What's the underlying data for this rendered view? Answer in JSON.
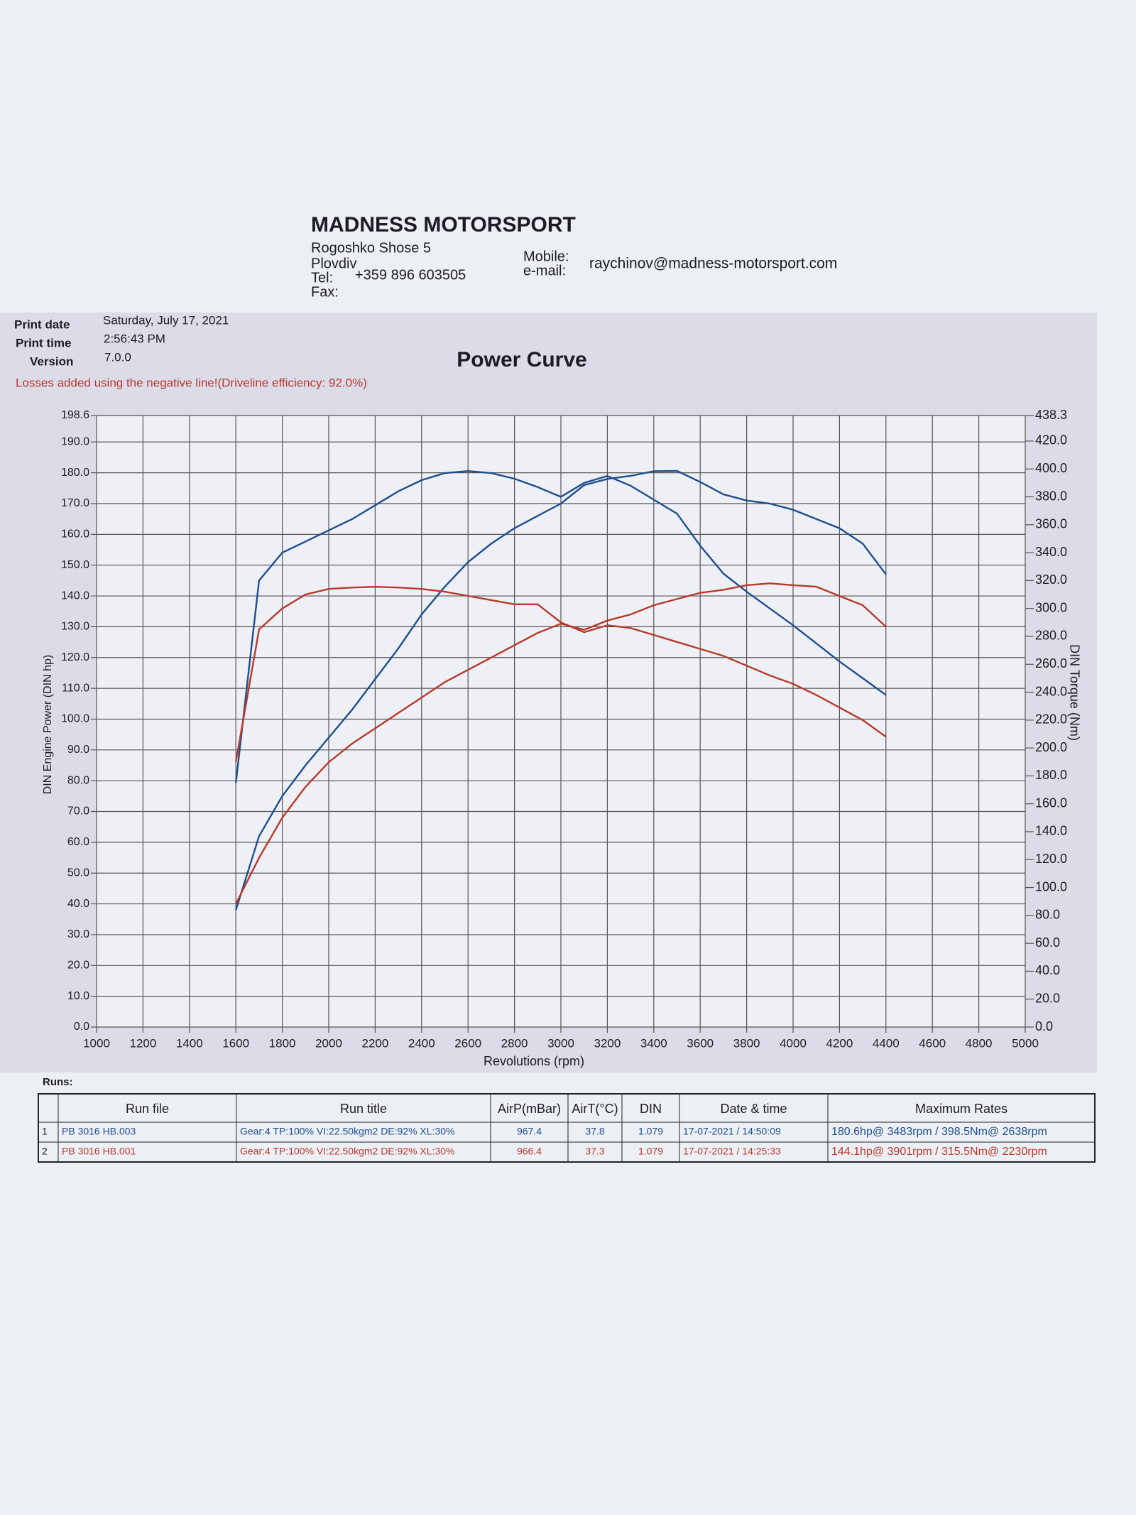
{
  "header": {
    "company": "MADNESS MOTORSPORT",
    "address": "Rogoshko Shose 5",
    "city": "Plovdiv",
    "tel_label": "Tel:",
    "tel": "+359 896 603505",
    "fax_label": "Fax:",
    "mobile_label": "Mobile:",
    "email_label": "e-mail:",
    "email": "raychinov@madness-motorsport.com"
  },
  "print_info": {
    "date_label": "Print date",
    "date": "Saturday, July 17, 2021",
    "time_label": "Print time",
    "time": "2:56:43 PM",
    "version_label": "Version",
    "version": "7.0.0"
  },
  "note": "Losses added using the negative line!(Driveline efficiency: 92.0%)",
  "chart_data": {
    "type": "line",
    "title": "Power Curve",
    "x_label": "Revolutions (rpm)",
    "y_label": "DIN Engine Power (DIN hp)",
    "y2_label": "DIN Torque (Nm)",
    "grid": true,
    "x": [
      1600,
      1700,
      1800,
      1900,
      2000,
      2100,
      2200,
      2300,
      2400,
      2500,
      2600,
      2700,
      2800,
      2900,
      3000,
      3100,
      3200,
      3300,
      3400,
      3500,
      3600,
      3700,
      3800,
      3900,
      4000,
      4100,
      4200,
      4300,
      4400
    ],
    "xlim": [
      1000,
      5000
    ],
    "xticks": [
      1000,
      1200,
      1400,
      1600,
      1800,
      2000,
      2200,
      2400,
      2600,
      2800,
      3000,
      3200,
      3400,
      3600,
      3800,
      4000,
      4200,
      4400,
      4600,
      4800,
      5000
    ],
    "ylim": [
      0,
      198.6
    ],
    "yticks": [
      {
        "value": 0,
        "label": "0.0"
      },
      {
        "value": 10,
        "label": "10.0"
      },
      {
        "value": 20,
        "label": "20.0"
      },
      {
        "value": 30,
        "label": "30.0"
      },
      {
        "value": 40,
        "label": "40.0"
      },
      {
        "value": 50,
        "label": "50.0"
      },
      {
        "value": 60,
        "label": "60.0"
      },
      {
        "value": 70,
        "label": "70.0"
      },
      {
        "value": 80,
        "label": "80.0"
      },
      {
        "value": 90,
        "label": "90.0"
      },
      {
        "value": 100,
        "label": "100.0"
      },
      {
        "value": 110,
        "label": "110.0"
      },
      {
        "value": 120,
        "label": "120.0"
      },
      {
        "value": 130,
        "label": "130.0"
      },
      {
        "value": 140,
        "label": "140.0"
      },
      {
        "value": 150,
        "label": "150.0"
      },
      {
        "value": 160,
        "label": "160.0"
      },
      {
        "value": 170,
        "label": "170.0"
      },
      {
        "value": 180,
        "label": "180.0"
      },
      {
        "value": 190,
        "label": "190.0"
      },
      198.6
    ],
    "y2lim": [
      0,
      438.3
    ],
    "y2ticks": [
      {
        "value": 0,
        "label": "0.0"
      },
      {
        "value": 20,
        "label": "20.0"
      },
      {
        "value": 40,
        "label": "40.0"
      },
      {
        "value": 60,
        "label": "60.0"
      },
      {
        "value": 80,
        "label": "80.0"
      },
      {
        "value": 100,
        "label": "100.0"
      },
      {
        "value": 120,
        "label": "120.0"
      },
      {
        "value": 140,
        "label": "140.0"
      },
      {
        "value": 160,
        "label": "160.0"
      },
      {
        "value": 180,
        "label": "180.0"
      },
      {
        "value": 200,
        "label": "200.0"
      },
      {
        "value": 220,
        "label": "220.0"
      },
      {
        "value": 240,
        "label": "240.0"
      },
      {
        "value": 260,
        "label": "260.0"
      },
      {
        "value": 280,
        "label": "280.0"
      },
      {
        "value": 300,
        "label": "300.0"
      },
      {
        "value": 320,
        "label": "320.0"
      },
      {
        "value": 340,
        "label": "340.0"
      },
      {
        "value": 360,
        "label": "360.0"
      },
      {
        "value": 380,
        "label": "380.0"
      },
      {
        "value": 400,
        "label": "400.0"
      },
      {
        "value": 420,
        "label": "420.0"
      },
      438.3
    ],
    "series": [
      {
        "color": "#1f4e8c",
        "values": [
          38,
          62,
          75,
          85,
          94,
          103,
          113,
          123,
          134,
          143,
          151,
          157,
          162,
          166,
          170,
          176,
          178,
          179,
          180.5,
          180.6,
          177,
          173,
          171,
          170,
          168,
          165,
          162,
          157,
          147
        ]
      },
      {
        "color": "#1f4e8c",
        "axis": "y2",
        "values": [
          175,
          320,
          340,
          348,
          356,
          364,
          374,
          384,
          392,
          397,
          398.5,
          397,
          393,
          387,
          380,
          390,
          395,
          388,
          378,
          368,
          345,
          325,
          312,
          300,
          288,
          275,
          262,
          250,
          238
        ]
      },
      {
        "color": "#b8392c",
        "values": [
          40,
          55,
          68,
          78,
          86,
          92,
          97,
          102,
          107,
          112,
          116,
          120,
          124,
          128,
          131,
          129,
          132,
          134,
          137,
          139,
          141,
          142,
          143.5,
          144.1,
          143.5,
          143,
          140,
          137,
          130
        ]
      },
      {
        "color": "#b8392c",
        "axis": "y2",
        "values": [
          190,
          285,
          300,
          310,
          314,
          315,
          315.5,
          315,
          314,
          312,
          309,
          306,
          303,
          303,
          290,
          283,
          288,
          286,
          281,
          276,
          271,
          266,
          259,
          252,
          246,
          238,
          229,
          220,
          208
        ]
      }
    ]
  },
  "runs": {
    "label": "Runs:",
    "headers": [
      "Run file",
      "Run title",
      "AirP(mBar)",
      "AirT(°C)",
      "DIN",
      "Date & time",
      "Maximum Rates"
    ],
    "rows": [
      [
        "1",
        "PB 3016 HB.003",
        "Gear:4 TP:100% VI:22.50kgm2 DE:92% XL:30%",
        "967.4",
        "37.8",
        "1.079",
        "17-07-2021 / 14:50:09",
        "180.6hp@ 3483rpm / 398.5Nm@ 2638rpm"
      ],
      [
        "2",
        "PB 3016 HB.001",
        "Gear:4 TP:100% VI:22.50kgm2 DE:92% XL:30%",
        "966.4",
        "37.3",
        "1.079",
        "17-07-2021 / 14:25:33",
        "144.1hp@ 3901rpm / 315.5Nm@ 2230rpm"
      ]
    ]
  }
}
